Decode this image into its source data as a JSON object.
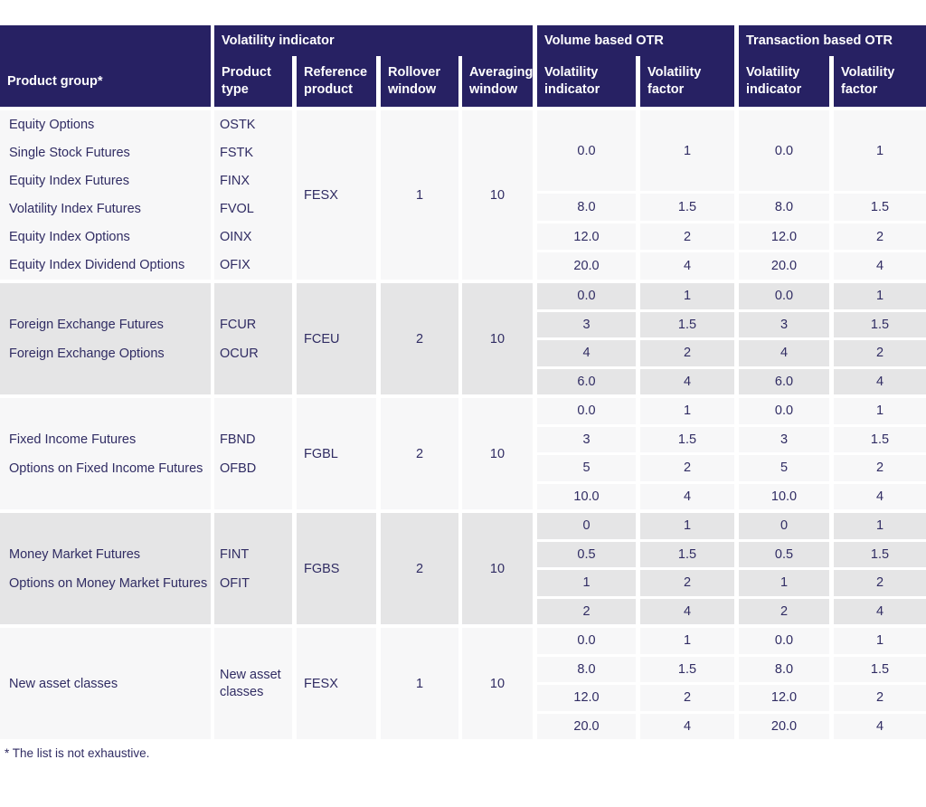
{
  "header": {
    "product_group": "Product group*",
    "groups": [
      {
        "label": "Volatility indicator",
        "columns": [
          "Product type",
          "Reference product",
          "Rollover window",
          "Averaging window"
        ]
      },
      {
        "label": "Volume based OTR",
        "columns": [
          "Volatility indicator",
          "Volatility factor"
        ]
      },
      {
        "label": "Transaction based OTR",
        "columns": [
          "Volatility indicator",
          "Volatility factor"
        ]
      }
    ]
  },
  "sections": [
    {
      "products": [
        "Equity Options",
        "Single Stock Futures",
        "Equity Index Futures",
        "Volatility Index Futures",
        "Equity Index Options",
        "Equity Index Dividend Options"
      ],
      "product_types": [
        "OSTK",
        "FSTK",
        "FINX",
        "FVOL",
        "OINX",
        "OFIX"
      ],
      "reference_product": "FESX",
      "rollover_window": "1",
      "averaging_window": "10",
      "otr": [
        [
          "0.0",
          "1",
          "0.0",
          "1"
        ],
        [
          "8.0",
          "1.5",
          "8.0",
          "1.5"
        ],
        [
          "12.0",
          "2",
          "12.0",
          "2"
        ],
        [
          "20.0",
          "4",
          "20.0",
          "4"
        ]
      ]
    },
    {
      "products": [
        "Foreign Exchange Futures",
        "Foreign Exchange Options"
      ],
      "product_types": [
        "FCUR",
        "OCUR"
      ],
      "reference_product": "FCEU",
      "rollover_window": "2",
      "averaging_window": "10",
      "otr": [
        [
          "0.0",
          "1",
          "0.0",
          "1"
        ],
        [
          "3",
          "1.5",
          "3",
          "1.5"
        ],
        [
          "4",
          "2",
          "4",
          "2"
        ],
        [
          "6.0",
          "4",
          "6.0",
          "4"
        ]
      ]
    },
    {
      "products": [
        "Fixed Income Futures",
        "Options on Fixed Income Futures"
      ],
      "product_types": [
        "FBND",
        "OFBD"
      ],
      "reference_product": "FGBL",
      "rollover_window": "2",
      "averaging_window": "10",
      "otr": [
        [
          "0.0",
          "1",
          "0.0",
          "1"
        ],
        [
          "3",
          "1.5",
          "3",
          "1.5"
        ],
        [
          "5",
          "2",
          "5",
          "2"
        ],
        [
          "10.0",
          "4",
          "10.0",
          "4"
        ]
      ]
    },
    {
      "products": [
        "Money Market Futures",
        "Options on Money Market Futures"
      ],
      "product_types": [
        "FINT",
        "OFIT"
      ],
      "reference_product": "FGBS",
      "rollover_window": "2",
      "averaging_window": "10",
      "otr": [
        [
          "0",
          "1",
          "0",
          "1"
        ],
        [
          "0.5",
          "1.5",
          "0.5",
          "1.5"
        ],
        [
          "1",
          "2",
          "1",
          "2"
        ],
        [
          "2",
          "4",
          "2",
          "4"
        ]
      ]
    },
    {
      "products": [
        "New asset classes"
      ],
      "product_types": [
        "New asset classes"
      ],
      "reference_product": "FESX",
      "rollover_window": "1",
      "averaging_window": "10",
      "otr": [
        [
          "0.0",
          "1",
          "0.0",
          "1"
        ],
        [
          "8.0",
          "1.5",
          "8.0",
          "1.5"
        ],
        [
          "12.0",
          "2",
          "12.0",
          "2"
        ],
        [
          "20.0",
          "4",
          "20.0",
          "4"
        ]
      ]
    }
  ],
  "footnote": "* The list is not exhaustive.",
  "colors": {
    "header_bg": "#272163",
    "text": "#302c63",
    "section_light": "#f7f7f8",
    "section_gray": "#e5e5e6"
  }
}
